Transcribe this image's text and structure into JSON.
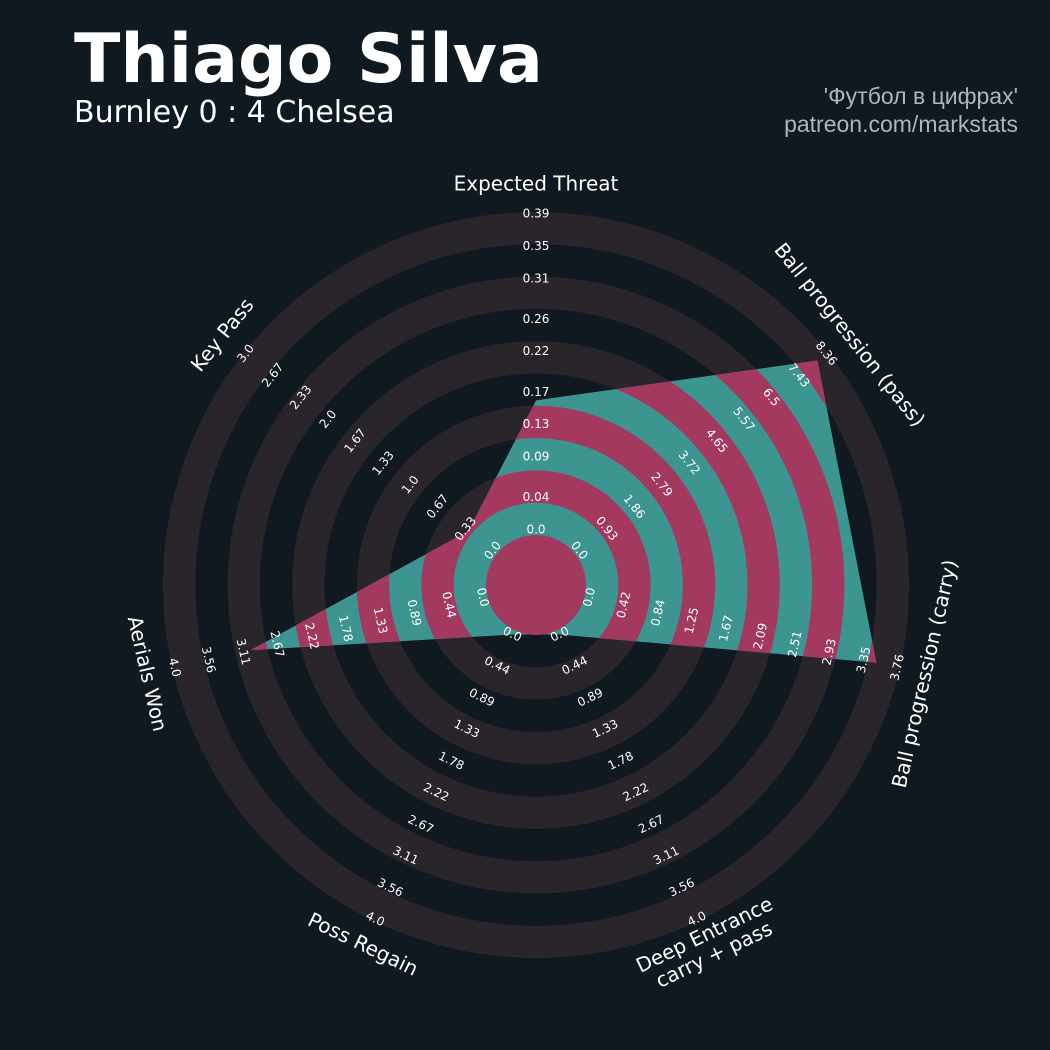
{
  "chart_data": {
    "type": "radar",
    "title": "Thiago Silva",
    "subtitle": "Burnley 0 : 4 Chelsea",
    "annotations": [
      "'Футбол в цифрах'",
      "patreon.com/markstats"
    ],
    "categories": [
      "Expected Threat",
      "Ball progression (pass)",
      "Ball progression (carry)",
      "Deep Entrance\ncarry + pass",
      "Poss Regain",
      "Aerials Won",
      "Key Pass"
    ],
    "values": [
      0.16,
      8.07,
      3.5,
      0,
      0,
      3.01,
      0.3
    ],
    "axes": [
      {
        "lim": [
          0,
          0.39
        ],
        "ticks": [
          {
            "value": 0,
            "label": "0.0"
          },
          0.04,
          0.09,
          0.13,
          0.17,
          0.22,
          0.26,
          0.31,
          0.35,
          0.39
        ]
      },
      {
        "lim": [
          0,
          8.36
        ],
        "ticks": [
          {
            "value": 0,
            "label": "0.0"
          },
          0.93,
          1.86,
          2.79,
          3.72,
          4.65,
          5.57,
          6.5,
          7.43,
          8.36
        ]
      },
      {
        "lim": [
          0,
          3.76
        ],
        "ticks": [
          {
            "value": 0,
            "label": "0.0"
          },
          0.42,
          0.84,
          1.25,
          1.67,
          2.09,
          2.51,
          2.93,
          3.35,
          3.76
        ]
      },
      {
        "lim": [
          0,
          4
        ],
        "ticks": [
          {
            "value": 0,
            "label": "0.0"
          },
          0.44,
          0.89,
          1.33,
          1.78,
          2.22,
          2.67,
          3.11,
          3.56,
          {
            "value": 4,
            "label": "4.0"
          }
        ]
      },
      {
        "lim": [
          0,
          4
        ],
        "ticks": [
          {
            "value": 0,
            "label": "0.0"
          },
          0.44,
          0.89,
          1.33,
          1.78,
          2.22,
          2.67,
          3.11,
          3.56,
          {
            "value": 4,
            "label": "4.0"
          }
        ]
      },
      {
        "lim": [
          0,
          4
        ],
        "ticks": [
          {
            "value": 0,
            "label": "0.0"
          },
          0.44,
          0.89,
          1.33,
          1.78,
          2.22,
          2.67,
          3.11,
          3.56,
          {
            "value": 4,
            "label": "4.0"
          }
        ]
      },
      {
        "lim": [
          0,
          3
        ],
        "ticks": [
          {
            "value": 0,
            "label": "0.0"
          },
          0.33,
          0.67,
          {
            "value": 1,
            "label": "1.0"
          },
          1.33,
          1.67,
          {
            "value": 2,
            "label": "2.0"
          },
          2.33,
          2.67,
          {
            "value": 3,
            "label": "3.0"
          }
        ]
      }
    ],
    "color": "#3d9591",
    "highlight_color": "#a3395f",
    "ring_color": "#29252b"
  }
}
